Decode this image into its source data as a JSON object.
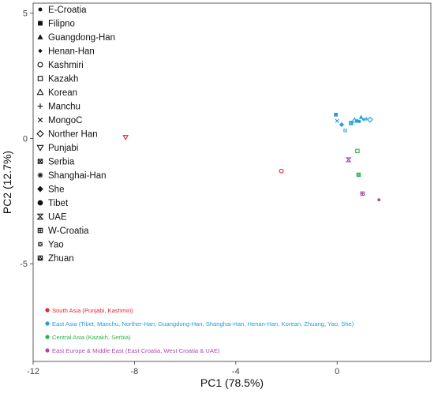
{
  "chart_data": {
    "type": "scatter",
    "xlabel": "PC1 (78.5%)",
    "ylabel": "PC2 (12.7%)",
    "xlim": [
      -12,
      3.7
    ],
    "ylim": [
      -8.9,
      5.4
    ],
    "x_ticks": [
      {
        "value": -12,
        "label": "-12"
      },
      {
        "value": -8,
        "label": "-8"
      },
      {
        "value": -4,
        "label": "-4"
      },
      {
        "value": 0,
        "label": "0"
      }
    ],
    "y_ticks": [
      {
        "value": 5,
        "label": "5"
      },
      {
        "value": 0,
        "label": "0"
      },
      {
        "value": -5,
        "label": "-5"
      }
    ],
    "grid": false,
    "legend_placement": "top-left",
    "shape_legend": [
      {
        "label": "E-Croatia",
        "icon": "circle-filled"
      },
      {
        "label": "Filipno",
        "icon": "square-filled"
      },
      {
        "label": "Guangdong-Han",
        "icon": "triangle-filled"
      },
      {
        "label": "Henan-Han",
        "icon": "diamond-filled-small"
      },
      {
        "label": "Kashmiri",
        "icon": "circle-open"
      },
      {
        "label": "Kazakh",
        "icon": "square-open"
      },
      {
        "label": "Korean",
        "icon": "triangle-open"
      },
      {
        "label": "Manchu",
        "icon": "plus"
      },
      {
        "label": "MongoC",
        "icon": "cross"
      },
      {
        "label": "Norther Han",
        "icon": "diamond-open"
      },
      {
        "label": "Punjabi",
        "icon": "triangle-down-open"
      },
      {
        "label": "Serbia",
        "icon": "square-cross"
      },
      {
        "label": "Shanghai-Han",
        "icon": "asterisk"
      },
      {
        "label": "She",
        "icon": "diamond-filled"
      },
      {
        "label": "Tibet",
        "icon": "circle-filled-large"
      },
      {
        "label": "UAE",
        "icon": "hourglass"
      },
      {
        "label": "W-Croatia",
        "icon": "square-plus"
      },
      {
        "label": "Yao",
        "icon": "square-x"
      },
      {
        "label": "Zhuan",
        "icon": "square-triangle"
      }
    ],
    "group_legend": [
      {
        "label": "South Asia (Punjabi, Kashmiri)",
        "color": "#e8262d"
      },
      {
        "label": "East Asia (Tibet, Manchu, Norther-Han, Guangdong-Han, Shanghai-Han, Henan-Han, Korean, Zhuang, Yao, She)",
        "color": "#1f9fd9"
      },
      {
        "label": "Central Asia (Kazakh, Serbia)",
        "color": "#2db34a"
      },
      {
        "label": "East Europe & Middle East (East Croatia, West Croatia & UAE)",
        "color": "#b048a8"
      }
    ],
    "points": [
      {
        "population": "Punjabi",
        "x": -8.35,
        "y": 0.05,
        "icon": "triangle-down-open",
        "color": "#e8262d"
      },
      {
        "population": "Kashmiri",
        "x": -2.2,
        "y": -1.3,
        "icon": "circle-open",
        "color": "#e8262d"
      },
      {
        "population": "Filipno",
        "x": -0.05,
        "y": 0.95,
        "icon": "square-filled",
        "color": "#1f9fd9"
      },
      {
        "population": "MongoC",
        "x": 0.0,
        "y": 0.7,
        "icon": "cross",
        "color": "#1f9fd9"
      },
      {
        "population": "She",
        "x": 0.18,
        "y": 0.55,
        "icon": "diamond-filled",
        "color": "#1f9fd9"
      },
      {
        "population": "Yao",
        "x": 0.32,
        "y": 0.32,
        "icon": "square-x",
        "color": "#1f9fd9"
      },
      {
        "population": "Zhuan",
        "x": 0.55,
        "y": 0.62,
        "icon": "square-triangle",
        "color": "#1f9fd9"
      },
      {
        "population": "Korean",
        "x": 0.68,
        "y": 0.72,
        "icon": "triangle-open",
        "color": "#1f9fd9"
      },
      {
        "population": "Shanghai-Han",
        "x": 0.78,
        "y": 0.7,
        "icon": "asterisk",
        "color": "#1f9fd9"
      },
      {
        "population": "Tibet",
        "x": 0.88,
        "y": 0.68,
        "icon": "circle-filled",
        "color": "#1f9fd9"
      },
      {
        "population": "Guangdong-Han",
        "x": 0.95,
        "y": 0.85,
        "icon": "triangle-filled",
        "color": "#1f9fd9"
      },
      {
        "population": "Henan-Han",
        "x": 1.05,
        "y": 0.75,
        "icon": "diamond-filled-small",
        "color": "#1f9fd9"
      },
      {
        "population": "Manchu",
        "x": 1.15,
        "y": 0.78,
        "icon": "plus",
        "color": "#1f9fd9"
      },
      {
        "population": "Norther Han",
        "x": 1.3,
        "y": 0.75,
        "icon": "diamond-open",
        "color": "#1f9fd9"
      },
      {
        "population": "Kazakh",
        "x": 0.8,
        "y": -0.5,
        "icon": "square-open",
        "color": "#2db34a"
      },
      {
        "population": "Serbia",
        "x": 0.85,
        "y": -1.45,
        "icon": "square-cross",
        "color": "#2db34a"
      },
      {
        "population": "UAE",
        "x": 0.45,
        "y": -0.85,
        "icon": "hourglass",
        "color": "#b048a8"
      },
      {
        "population": "W-Croatia",
        "x": 1.0,
        "y": -2.2,
        "icon": "square-plus",
        "color": "#b048a8"
      },
      {
        "population": "E-Croatia",
        "x": 1.65,
        "y": -2.45,
        "icon": "circle-filled",
        "color": "#b048a8"
      }
    ]
  }
}
